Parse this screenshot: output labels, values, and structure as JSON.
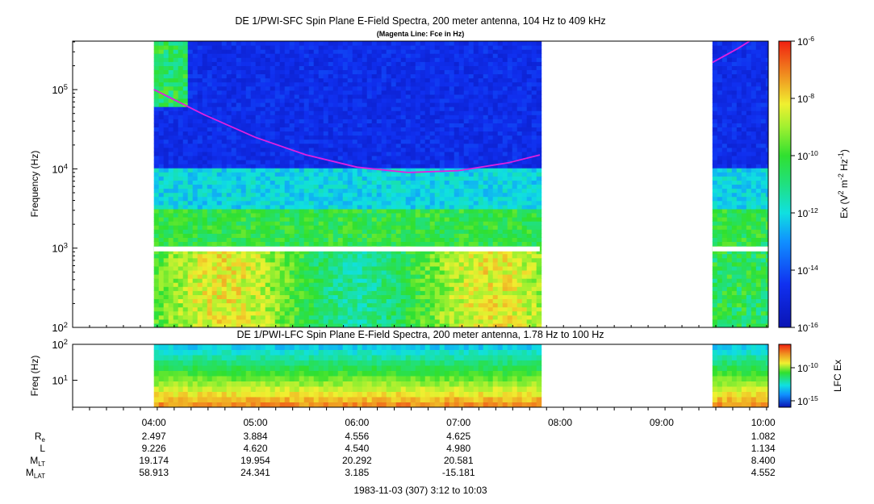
{
  "chart_data": [
    {
      "type": "heatmap",
      "title": "DE 1/PWI-SFC  Spin Plane E-Field Spectra, 200 meter antenna, 104 Hz to 409 kHz",
      "subtitle": "(Magenta Line: Fce in Hz)",
      "ylabel": "Frequency (Hz)",
      "yscale": "log",
      "ylim": [
        100,
        409000
      ],
      "yticks": [
        {
          "value": 100,
          "mant": "10",
          "exp": "2"
        },
        {
          "value": 1000,
          "mant": "10",
          "exp": "3"
        },
        {
          "value": 10000,
          "mant": "10",
          "exp": "4"
        },
        {
          "value": 100000,
          "mant": "10",
          "exp": "5"
        }
      ],
      "data_intervals": [
        [
          "04:00",
          "07:48"
        ],
        [
          "09:30",
          "10:03"
        ]
      ],
      "fce_line": {
        "name": "Fce",
        "color": "#e020e0",
        "points": [
          [
            "04:00",
            100000
          ],
          [
            "04:30",
            48000
          ],
          [
            "05:00",
            25000
          ],
          [
            "05:30",
            15000
          ],
          [
            "06:00",
            10500
          ],
          [
            "06:30",
            9000
          ],
          [
            "07:00",
            9500
          ],
          [
            "07:30",
            12000
          ],
          [
            "07:48",
            15000
          ],
          [
            "09:30",
            220000
          ],
          [
            "09:45",
            330000
          ],
          [
            "09:52",
            409000
          ]
        ]
      },
      "colorbar": {
        "label_base": "Ex (V",
        "label_parts": [
          "2",
          " m",
          "-2",
          " Hz",
          "-1",
          ")"
        ],
        "scale": "log",
        "range": [
          1e-16,
          1e-06
        ],
        "ticks": [
          {
            "value": 1e-06,
            "mant": "10",
            "exp": "-6"
          },
          {
            "value": 1e-08,
            "mant": "10",
            "exp": "-8"
          },
          {
            "value": 1e-10,
            "mant": "10",
            "exp": "-10"
          },
          {
            "value": 1e-12,
            "mant": "10",
            "exp": "-12"
          },
          {
            "value": 1e-14,
            "mant": "10",
            "exp": "-14"
          },
          {
            "value": 1e-16,
            "mant": "10",
            "exp": "-16"
          }
        ]
      }
    },
    {
      "type": "heatmap",
      "title": "DE 1/PWI-LFC  Spin Plane E-Field Spectra, 200 meter antenna, 1.78 Hz to 100 Hz",
      "ylabel": "Freq (Hz)",
      "yscale": "log",
      "ylim": [
        1.78,
        100
      ],
      "yticks": [
        {
          "value": 100,
          "mant": "10",
          "exp": "2"
        },
        {
          "value": 10,
          "mant": "10",
          "exp": "1"
        }
      ],
      "data_intervals": [
        [
          "04:00",
          "07:48"
        ],
        [
          "09:30",
          "10:03"
        ]
      ],
      "colorbar": {
        "label": "LFC Ex",
        "scale": "log",
        "ticks": [
          {
            "value": 1e-10,
            "mant": "10",
            "exp": "-10"
          },
          {
            "value": 1e-15,
            "mant": "10",
            "exp": "-15"
          }
        ]
      }
    }
  ],
  "time_axis": {
    "start": "03:12",
    "end": "10:03",
    "ticks": [
      "04:00",
      "05:00",
      "06:00",
      "07:00",
      "08:00",
      "09:00",
      "10:00"
    ],
    "range_label": "1983-11-03 (307) 3:12 to 10:03"
  },
  "ephemeris": {
    "rows": [
      {
        "label": "R",
        "sub": "e",
        "values": [
          "2.497",
          "3.884",
          "4.556",
          "4.625",
          "",
          "",
          "1.082"
        ]
      },
      {
        "label": "L",
        "sub": "",
        "values": [
          "9.226",
          "4.620",
          "4.540",
          "4.980",
          "",
          "",
          "1.134"
        ]
      },
      {
        "label": "M",
        "sub": "LT",
        "values": [
          "19.174",
          "19.954",
          "20.292",
          "20.581",
          "",
          "",
          "8.400"
        ]
      },
      {
        "label": "M",
        "sub": "LAT",
        "values": [
          "58.913",
          "24.341",
          "3.185",
          "-15.181",
          "",
          "",
          "4.552"
        ]
      }
    ]
  },
  "colors": {
    "background": "#ffffff",
    "quiet": "#0a14b4",
    "fce_line": "#e020e0"
  }
}
